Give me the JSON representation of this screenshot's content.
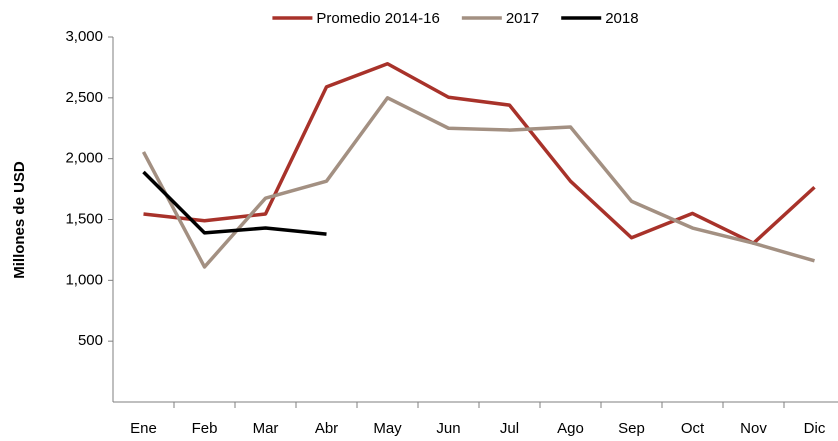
{
  "chart_data": {
    "type": "line",
    "y_label": "Millones de USD",
    "categories": [
      "Ene",
      "Feb",
      "Mar",
      "Abr",
      "May",
      "Jun",
      "Jul",
      "Ago",
      "Sep",
      "Oct",
      "Nov",
      "Dic"
    ],
    "series": [
      {
        "name": "Promedio 2014-16",
        "color": "#a8322a",
        "values": [
          1545,
          1490,
          1545,
          2590,
          2780,
          2505,
          2440,
          1815,
          1350,
          1550,
          1305,
          1765
        ]
      },
      {
        "name": "2017",
        "color": "#a39082",
        "values": [
          2055,
          1110,
          1675,
          1815,
          2500,
          2250,
          2235,
          2260,
          1650,
          1430,
          1305,
          1160
        ]
      },
      {
        "name": "2018",
        "color": "#000000",
        "values": [
          1890,
          1390,
          1430,
          1380,
          null,
          null,
          null,
          null,
          null,
          null,
          null,
          null
        ]
      }
    ],
    "ylim": [
      0,
      3000
    ],
    "yticks": [
      500,
      {
        "value": 1000,
        "label": "1,000"
      },
      {
        "value": 1500,
        "label": "1,500"
      },
      {
        "value": 2000,
        "label": "2,000"
      },
      {
        "value": 2500,
        "label": "2,500"
      },
      {
        "value": 3000,
        "label": "3,000"
      }
    ],
    "grid": false,
    "legend": "top"
  }
}
